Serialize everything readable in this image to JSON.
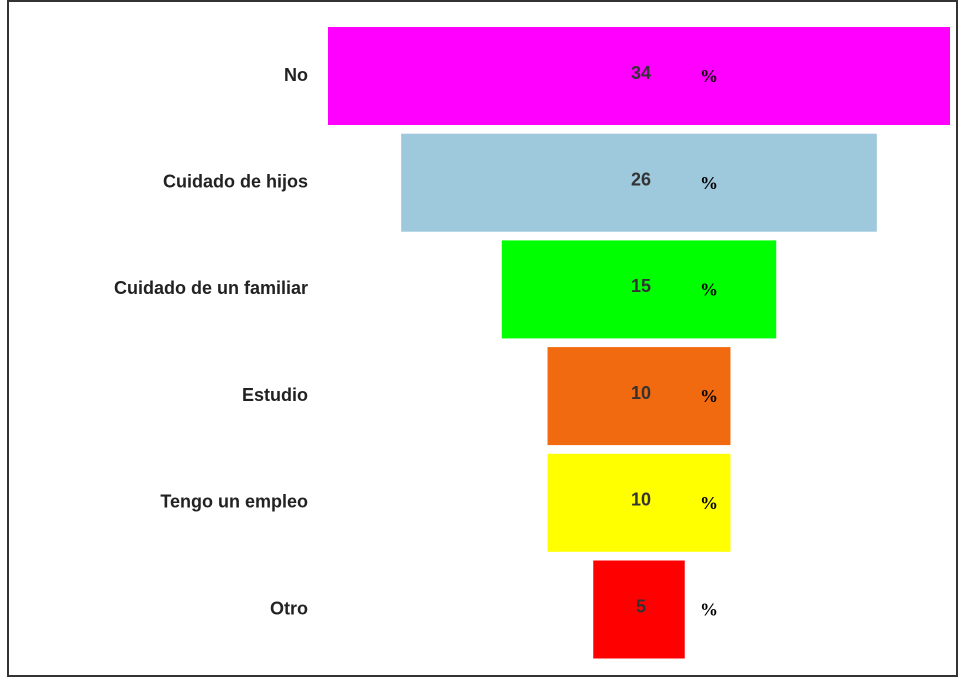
{
  "chart_data": {
    "type": "funnel",
    "categories": [
      "No",
      "Cuidado de hijos",
      "Cuidado de un familiar",
      "Estudio",
      "Tengo un empleo",
      "Otro"
    ],
    "values": [
      34,
      26,
      15,
      10,
      10,
      5
    ],
    "unit": "%",
    "colors": [
      "#ff00ff",
      "#9ec8dc",
      "#00ff00",
      "#f26a10",
      "#ffff00",
      "#ff0000"
    ]
  }
}
